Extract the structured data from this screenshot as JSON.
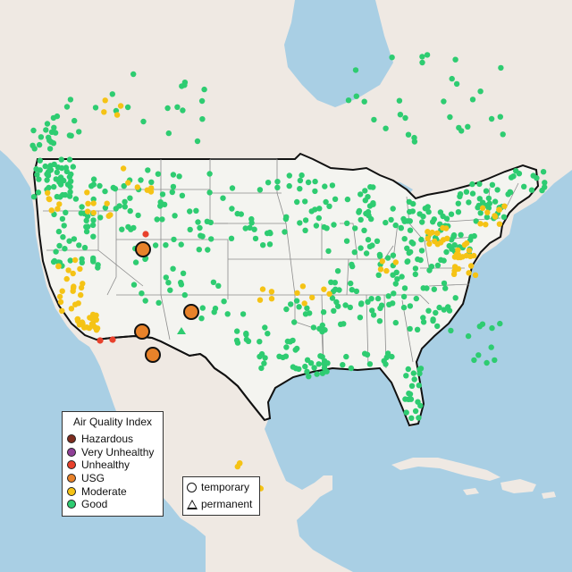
{
  "map": {
    "legend": {
      "title": "Air Quality Index",
      "categories": [
        {
          "label": "Hazardous",
          "color": "#7e2d1f"
        },
        {
          "label": "Very Unhealthy",
          "color": "#8f3f97"
        },
        {
          "label": "Unhealthy",
          "color": "#e8412c"
        },
        {
          "label": "USG",
          "color": "#e8822a"
        },
        {
          "label": "Moderate",
          "color": "#f5c315"
        },
        {
          "label": "Good",
          "color": "#2ecc71"
        }
      ]
    },
    "monitor_types": {
      "temporary": "temporary",
      "permanent": "permanent"
    },
    "colors": {
      "ocean": "#a9cfe4",
      "land": "#efe9e3",
      "us_land": "#f4f4f0",
      "border": "#111111",
      "state_line": "#8c8c8c"
    }
  }
}
